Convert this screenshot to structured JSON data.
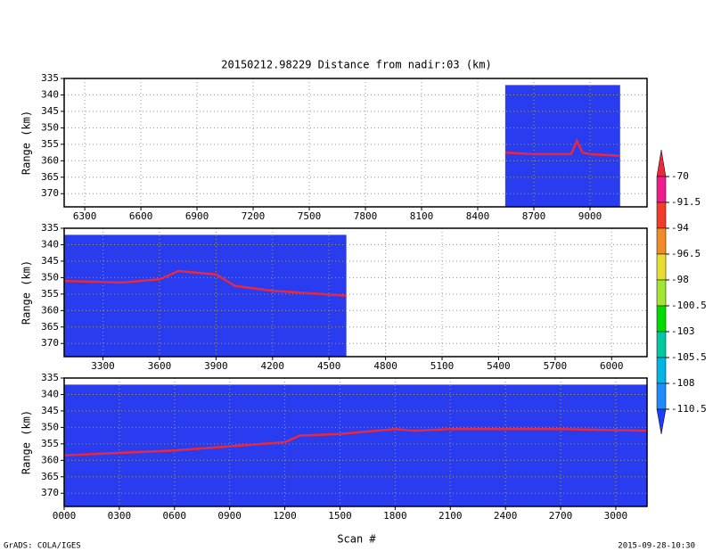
{
  "title": "20150212.98229    Distance from nadir:03 (km)",
  "x_label": "Scan #",
  "footer_left": "GrADS: COLA/IGES",
  "footer_right": "2015-09-28-10:30",
  "colorbar": {
    "levels": [
      -70,
      -91.5,
      -94,
      -96.5,
      -98,
      -100.5,
      -103,
      -105.5,
      -108,
      -110.5
    ],
    "colors": [
      "#e8283c",
      "#f01e8c",
      "#f03c28",
      "#f08c28",
      "#e6dc32",
      "#a0e632",
      "#00dc00",
      "#00c8a0",
      "#00b4e6",
      "#1e8cff",
      "#1e3cff"
    ]
  },
  "chart_data": [
    {
      "type": "line",
      "y_label": "Range (km)",
      "xlim": [
        6190,
        9305
      ],
      "xticks": [
        6300,
        6600,
        6900,
        7200,
        7500,
        7800,
        8100,
        8400,
        8700,
        9000
      ],
      "ylim": [
        335,
        374
      ],
      "yticks": [
        335,
        340,
        345,
        350,
        355,
        360,
        365,
        370
      ],
      "y_reversed": true,
      "grid": true,
      "field": {
        "x": [
          8547,
          9161
        ],
        "top": 337,
        "color": "#2a3cf0"
      },
      "x": [
        8547,
        8700,
        8900,
        8930,
        8960,
        9000,
        9161
      ],
      "series": [
        {
          "color": "#e8283c",
          "values": [
            357.5,
            358,
            358,
            354,
            357.5,
            358,
            358.5
          ]
        }
      ]
    },
    {
      "type": "line",
      "y_label": "Range (km)",
      "xlim": [
        3094,
        6188
      ],
      "xticks": [
        3300,
        3600,
        3900,
        4200,
        4500,
        4800,
        5100,
        5400,
        5700,
        6000
      ],
      "ylim": [
        335,
        374
      ],
      "yticks": [
        335,
        340,
        345,
        350,
        355,
        360,
        365,
        370
      ],
      "y_reversed": true,
      "grid": true,
      "field": {
        "x": [
          3094,
          4592
        ],
        "top": 337,
        "color": "#2a3cf0"
      },
      "x": [
        3094,
        3400,
        3600,
        3700,
        3800,
        3900,
        4000,
        4200,
        4592
      ],
      "series": [
        {
          "color": "#e8283c",
          "values": [
            351,
            351.5,
            350.5,
            348,
            348.5,
            349,
            352.5,
            354,
            355.5
          ]
        }
      ]
    },
    {
      "type": "line",
      "y_label": "Range (km)",
      "xlim": [
        0,
        3170
      ],
      "xticks": [
        {
          "value": 0,
          "label": "0000"
        },
        {
          "value": 300,
          "label": "0300"
        },
        {
          "value": 600,
          "label": "0600"
        },
        {
          "value": 900,
          "label": "0900"
        },
        1200,
        1500,
        1800,
        2100,
        2400,
        2700,
        3000
      ],
      "ylim": [
        335,
        374
      ],
      "yticks": [
        335,
        340,
        345,
        350,
        355,
        360,
        365,
        370
      ],
      "y_reversed": true,
      "grid": true,
      "field": {
        "x": [
          0,
          3170
        ],
        "top": 337,
        "color": "#2a3cf0"
      },
      "x": [
        0,
        600,
        1200,
        1280,
        1500,
        1800,
        1900,
        2100,
        2700,
        3170
      ],
      "series": [
        {
          "color": "#e8283c",
          "values": [
            358.5,
            357,
            354.5,
            352.5,
            352,
            350.5,
            351,
            350.5,
            350.5,
            351
          ]
        }
      ]
    }
  ]
}
